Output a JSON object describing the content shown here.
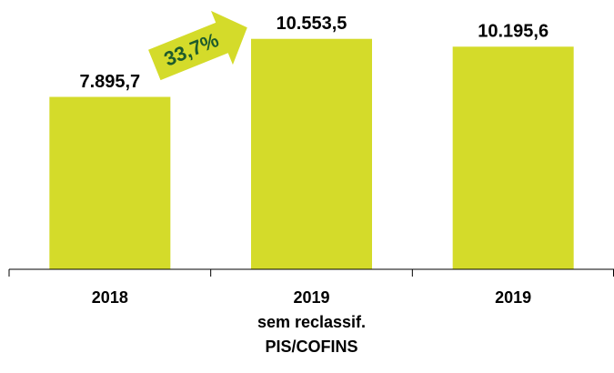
{
  "chart_data": {
    "type": "bar",
    "categories": [
      "2018",
      "2019\nsem reclassif.\nPIS/COFINS",
      "2019"
    ],
    "values": [
      7895.7,
      10553.5,
      10195.6
    ],
    "value_labels": [
      "7.895,7",
      "10.553,5",
      "10.195,6"
    ],
    "color": "#d4db2a",
    "ylim": [
      0,
      12000
    ],
    "annotation": "33,7%"
  }
}
